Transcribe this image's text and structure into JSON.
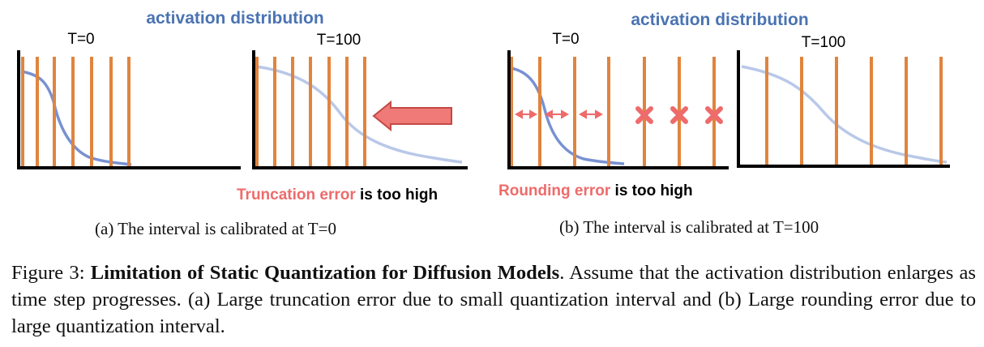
{
  "panel_a": {
    "heading": "activation distribution",
    "chart_left_title": "T=0",
    "chart_right_title": "T=100",
    "error_highlight": "Truncation error",
    "error_rest": " is too high",
    "sub_caption": "(a) The interval is calibrated at T=0"
  },
  "panel_b": {
    "heading": "activation distribution",
    "chart_left_title": "T=0",
    "chart_right_title": "T=100",
    "error_highlight": "Rounding error",
    "error_rest": " is too high",
    "sub_caption": "(b) The interval is calibrated at T=100"
  },
  "caption": {
    "prefix": "Figure 3: ",
    "title": "Limitation of Static Quantization for Diffusion Models",
    "body": ". Assume that the activation distribution enlarges as time step progresses. (a) Large truncation error due to small quantization interval and (b) Large rounding error due to large quantization interval."
  },
  "colors": {
    "heading_blue": "#4a73b2",
    "bar_orange": "#e0843e",
    "curve_dark": "#7891d2",
    "curve_light": "#b9c8e8",
    "error_red": "#ee6b6b",
    "arrow_fill": "#f07a77",
    "arrow_stroke": "#c24a46"
  }
}
